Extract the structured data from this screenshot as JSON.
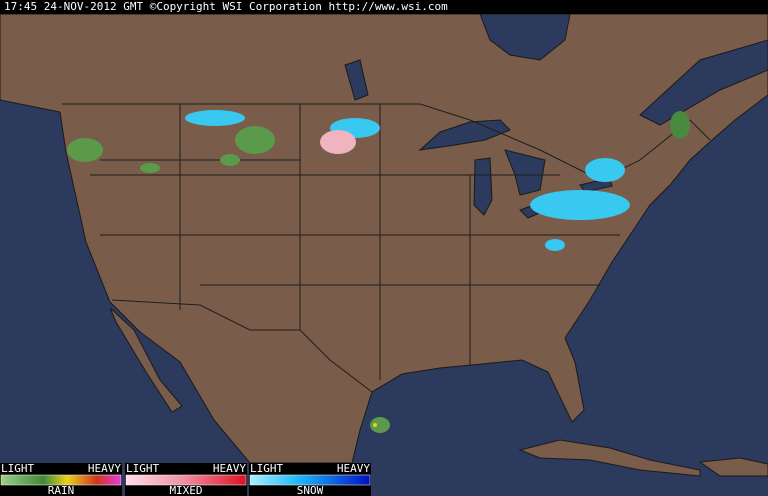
{
  "header": {
    "text": "17:45 24-NOV-2012 GMT ©Copyright WSI Corporation  http://www.wsi.com"
  },
  "legend": [
    {
      "light": "LIGHT",
      "heavy": "HEAVY",
      "label": "RAIN"
    },
    {
      "light": "LIGHT",
      "heavy": "HEAVY",
      "label": "MIXED"
    },
    {
      "light": "LIGHT",
      "heavy": "HEAVY",
      "label": "SNOW"
    }
  ]
}
